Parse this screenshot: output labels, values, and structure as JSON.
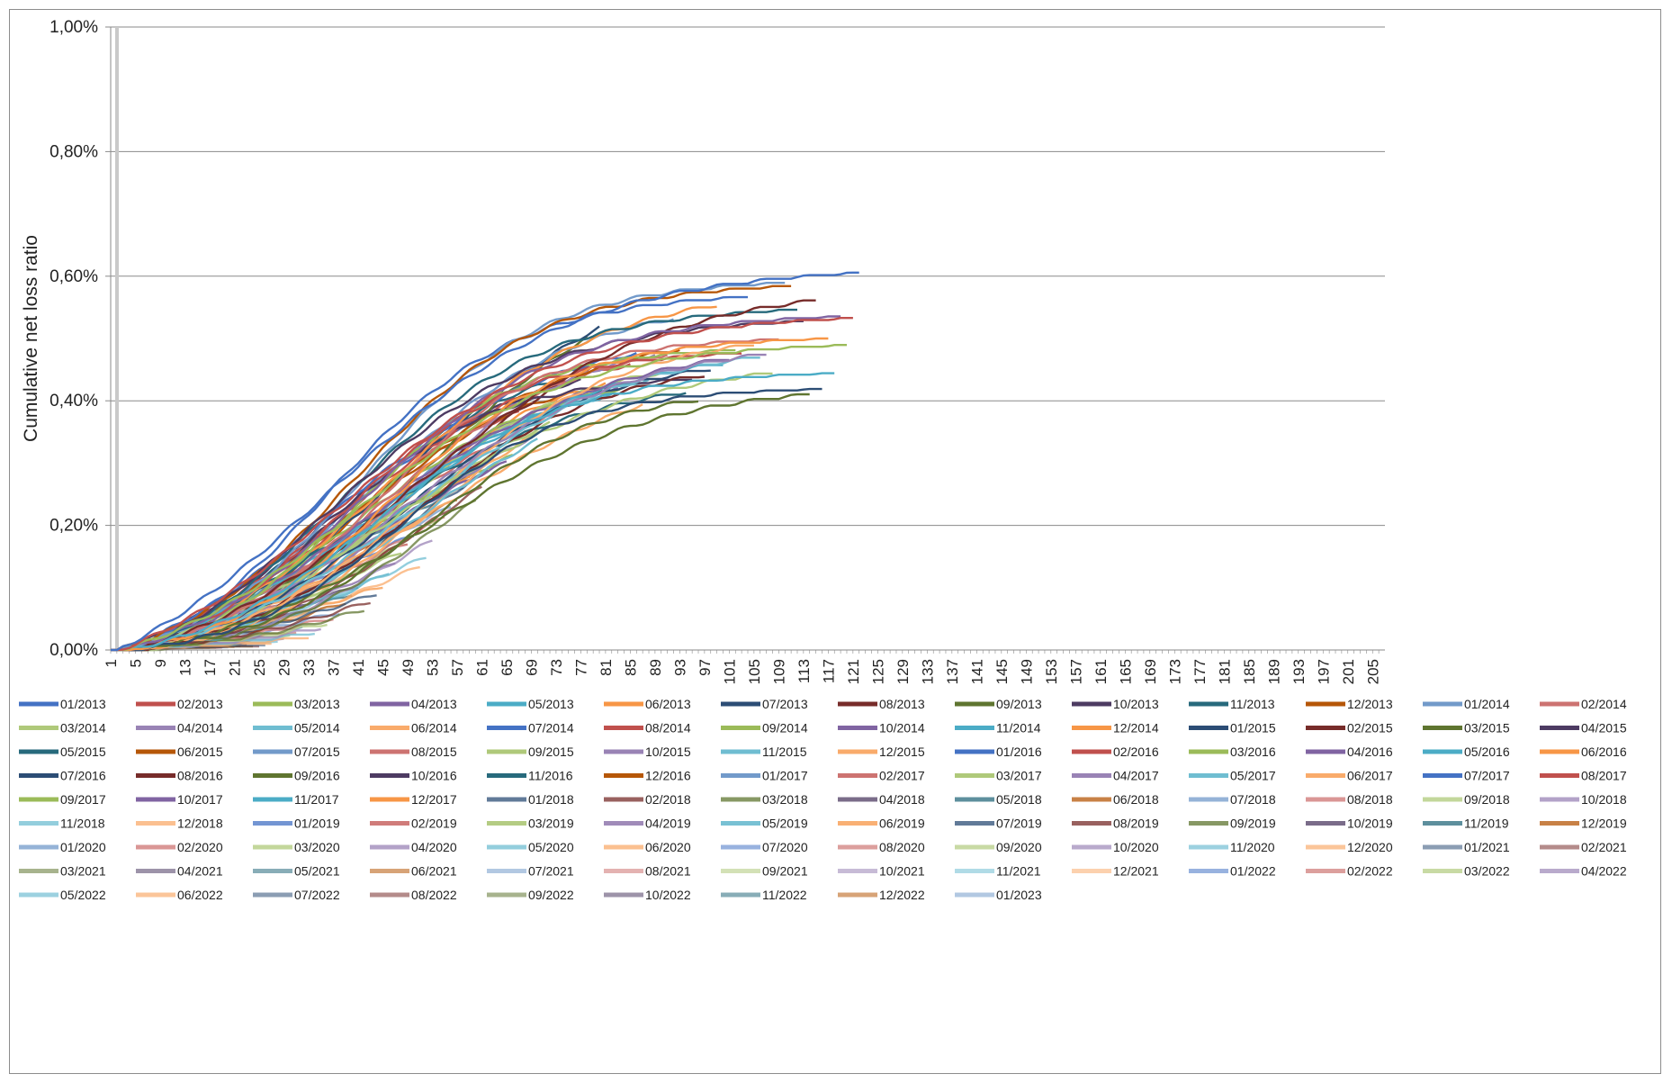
{
  "chart_data": {
    "type": "line",
    "title": "",
    "xlabel": "",
    "ylabel": "Cumulative net loss ratio",
    "ylim": [
      0,
      1.0
    ],
    "xlim": [
      1,
      207
    ],
    "yticks": [
      "0,00%",
      "0,20%",
      "0,40%",
      "0,60%",
      "0,80%",
      "1,00%"
    ],
    "ytick_values": [
      0,
      0.2,
      0.4,
      0.6,
      0.8,
      1.0
    ],
    "xticks": [
      "1",
      "5",
      "9",
      "13",
      "17",
      "21",
      "25",
      "29",
      "33",
      "37",
      "41",
      "45",
      "49",
      "53",
      "57",
      "61",
      "65",
      "69",
      "73",
      "77",
      "81",
      "85",
      "89",
      "93",
      "97",
      "101",
      "105",
      "109",
      "113",
      "117",
      "121",
      "125",
      "129",
      "133",
      "137",
      "141",
      "145",
      "149",
      "153",
      "157",
      "161",
      "165",
      "169",
      "173",
      "177",
      "181",
      "185",
      "189",
      "193",
      "197",
      "201",
      "205"
    ],
    "grid": "horizontal",
    "legend_position": "bottom",
    "palette": [
      "#4472C4",
      "#C0504D",
      "#9BBB59",
      "#8064A2",
      "#4BACC6",
      "#F79646",
      "#2C4D75",
      "#772C2A",
      "#5F7530",
      "#4D3B62",
      "#276A7C",
      "#B65708",
      "#729ACA",
      "#CD7371",
      "#AFC97A",
      "#9983B5",
      "#6FBDD1",
      "#F9AB6B"
    ],
    "series_names": [
      "01/2013",
      "02/2013",
      "03/2013",
      "04/2013",
      "05/2013",
      "06/2013",
      "07/2013",
      "08/2013",
      "09/2013",
      "10/2013",
      "11/2013",
      "12/2013",
      "01/2014",
      "02/2014",
      "03/2014",
      "04/2014",
      "05/2014",
      "06/2014",
      "07/2014",
      "08/2014",
      "09/2014",
      "10/2014",
      "11/2014",
      "12/2014",
      "01/2015",
      "02/2015",
      "03/2015",
      "04/2015",
      "05/2015",
      "06/2015",
      "07/2015",
      "08/2015",
      "09/2015",
      "10/2015",
      "11/2015",
      "12/2015",
      "01/2016",
      "02/2016",
      "03/2016",
      "04/2016",
      "05/2016",
      "06/2016",
      "07/2016",
      "08/2016",
      "09/2016",
      "10/2016",
      "11/2016",
      "12/2016",
      "01/2017",
      "02/2017",
      "03/2017",
      "04/2017",
      "05/2017",
      "06/2017",
      "07/2017",
      "08/2017",
      "09/2017",
      "10/2017",
      "11/2017",
      "12/2017",
      "01/2018",
      "02/2018",
      "03/2018",
      "04/2018",
      "05/2018",
      "06/2018",
      "07/2018",
      "08/2018",
      "09/2018",
      "10/2018",
      "11/2018",
      "12/2018",
      "01/2019",
      "02/2019",
      "03/2019",
      "04/2019",
      "05/2019",
      "06/2019",
      "07/2019",
      "08/2019",
      "09/2019",
      "10/2019",
      "11/2019",
      "12/2019",
      "01/2020",
      "02/2020",
      "03/2020",
      "04/2020",
      "05/2020",
      "06/2020",
      "07/2020",
      "08/2020",
      "09/2020",
      "10/2020",
      "11/2020",
      "12/2020",
      "01/2021",
      "02/2021",
      "03/2021",
      "04/2021",
      "05/2021",
      "06/2021",
      "07/2021",
      "08/2021",
      "09/2021",
      "10/2021",
      "11/2021",
      "12/2021",
      "01/2022",
      "02/2022",
      "03/2022",
      "04/2022",
      "05/2022",
      "06/2022",
      "07/2022",
      "08/2022",
      "09/2022",
      "10/2022",
      "11/2022",
      "12/2022",
      "01/2023"
    ],
    "series_final_values": [
      0.595,
      0.523,
      0.48,
      0.525,
      0.435,
      0.49,
      0.41,
      0.562,
      0.41,
      0.52,
      0.538,
      0.575,
      0.58,
      0.49,
      0.45,
      0.48,
      0.475,
      0.495,
      0.56,
      0.47,
      0.475,
      0.48,
      0.47,
      0.565,
      0.46,
      0.45,
      0.41,
      0.43,
      0.43,
      0.5,
      0.55,
      0.49,
      0.46,
      0.49,
      0.45,
      0.45,
      0.5,
      0.48,
      0.44,
      0.44,
      0.43,
      0.45,
      0.613,
      0.54,
      0.6,
      0.46,
      0.47,
      0.44,
      0.42,
      0.47,
      0.45,
      0.44,
      0.43,
      0.45,
      0.44,
      0.42,
      0.4,
      0.39,
      0.42,
      0.41,
      0.4,
      0.38,
      0.37,
      0.38,
      0.36,
      0.34,
      0.33,
      0.32,
      0.33,
      0.3,
      0.3,
      0.29,
      0.28,
      0.27,
      0.26,
      0.25,
      0.24,
      0.23,
      0.22,
      0.21,
      0.2,
      0.19,
      0.18,
      0.17,
      0.16,
      0.15,
      0.14,
      0.135,
      0.12,
      0.11,
      0.1,
      0.09,
      0.085,
      0.075,
      0.065,
      0.058,
      0.05,
      0.043,
      0.036,
      0.03,
      0.025,
      0.02,
      0.016,
      0.013,
      0.01,
      0.008,
      0.006,
      0.005,
      0.004,
      0.003,
      0.002,
      0.0016,
      0.0012,
      0.001,
      0.0008,
      0.0006,
      0.0004,
      0.0003,
      0.0002,
      0.0001,
      0
    ]
  }
}
